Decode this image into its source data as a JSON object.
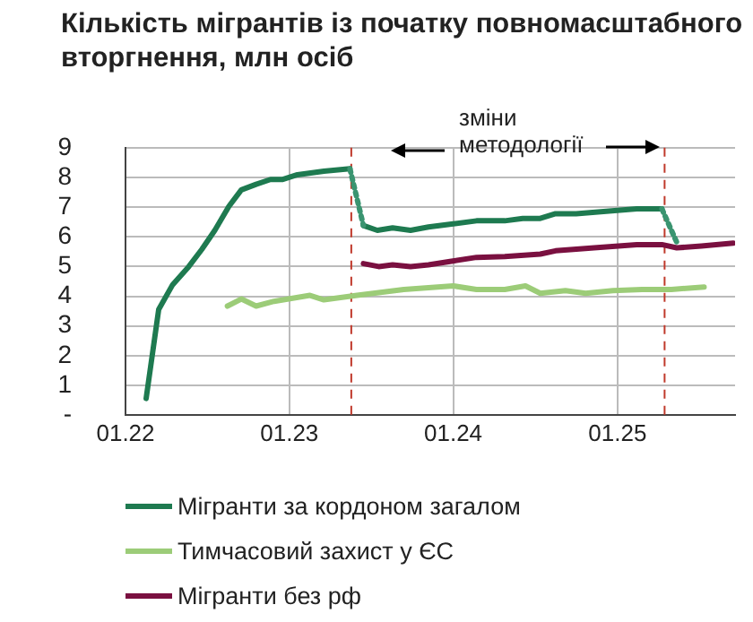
{
  "chart_data": {
    "type": "line",
    "title": "Кількість мігрантів із початку повномасштабного вторгнення, млн осіб",
    "xlim": [
      "2022-01-01",
      "2025-09-20"
    ],
    "xticks": [
      {
        "value": "2022-01-01",
        "label": "01.22"
      },
      {
        "value": "2023-01-01",
        "label": "01.23"
      },
      {
        "value": "2024-01-01",
        "label": "01.24"
      },
      {
        "value": "2025-01-01",
        "label": "01.25"
      }
    ],
    "ylim": [
      0,
      9
    ],
    "yticks": [
      {
        "value": 0,
        "label": "-"
      },
      1,
      2,
      3,
      4,
      5,
      6,
      7,
      8,
      9
    ],
    "grid": true,
    "legend": "bottom",
    "marker": "none",
    "series": [
      {
        "name": "Мігранти за кордоном загалом",
        "color": "#1e7a50",
        "x": [
          "2022-02-16",
          "2022-03-16",
          "2022-04-16",
          "2022-05-22",
          "2022-06-20",
          "2022-07-19",
          "2022-08-19",
          "2022-09-16",
          "2022-10-19",
          "2022-11-20",
          "2022-12-16",
          "2023-01-19",
          "2023-03-19",
          "2023-05-16",
          null,
          "2023-06-15",
          "2023-07-16",
          "2023-08-19",
          "2023-09-28",
          "2023-11-07",
          "2023-12-28",
          "2024-02-22",
          "2024-04-25",
          "2024-06-04",
          "2024-07-13",
          "2024-08-16",
          "2024-10-01",
          "2024-12-07",
          "2025-02-13",
          "2025-04-10"
        ],
        "values": [
          0.56,
          3.56,
          4.39,
          5.0,
          5.58,
          6.22,
          7.02,
          7.58,
          7.77,
          7.93,
          7.93,
          8.09,
          8.21,
          8.29,
          null,
          6.38,
          6.22,
          6.3,
          6.22,
          6.33,
          6.43,
          6.54,
          6.54,
          6.62,
          6.62,
          6.78,
          6.78,
          6.86,
          6.94,
          6.94
        ]
      },
      {
        "color": "#3a9470",
        "line_style": "dotted",
        "x": [
          "2023-05-16",
          "2023-06-15",
          null,
          "2025-04-10",
          "2025-05-13"
        ],
        "values": [
          8.29,
          6.38,
          null,
          6.94,
          5.82
        ]
      },
      {
        "name": "Тимчасовий захист у ЄС",
        "color": "#9ccc78",
        "x": [
          "2022-08-16",
          "2022-09-16",
          "2022-10-19",
          "2022-11-28",
          "2023-02-16",
          "2023-03-19",
          "2023-06-01",
          "2023-09-13",
          "2024-01-01",
          "2024-02-22",
          "2024-04-25",
          "2024-06-10",
          "2024-07-13",
          "2024-09-07",
          "2024-10-22",
          "2024-12-22",
          "2025-02-25",
          "2025-05-01",
          "2025-07-13"
        ],
        "values": [
          3.67,
          3.91,
          3.67,
          3.83,
          4.03,
          3.88,
          4.03,
          4.23,
          4.35,
          4.23,
          4.23,
          4.35,
          4.1,
          4.19,
          4.1,
          4.19,
          4.23,
          4.23,
          4.31
        ]
      },
      {
        "name": "Мігранти без рф",
        "color": "#7a1040",
        "x": [
          "2023-06-15",
          "2023-07-19",
          "2023-08-19",
          "2023-09-28",
          "2023-11-07",
          "2023-12-28",
          "2024-02-22",
          "2024-04-25",
          "2024-07-13",
          "2024-08-16",
          "2024-11-10",
          "2025-02-13",
          "2025-04-10",
          "2025-05-13",
          "2025-07-07",
          "2025-09-16"
        ],
        "values": [
          5.1,
          5.0,
          5.06,
          5.0,
          5.06,
          5.18,
          5.31,
          5.34,
          5.42,
          5.53,
          5.63,
          5.74,
          5.74,
          5.63,
          5.69,
          5.79
        ]
      }
    ],
    "ref_lines": [
      {
        "axis": "x",
        "value": "2023-05-19",
        "color": "#c0392b",
        "line_style": "dashed"
      },
      {
        "axis": "x",
        "value": "2025-04-16",
        "color": "#c0392b",
        "line_style": "dashed"
      }
    ],
    "annotations": [
      "зміни методології"
    ]
  }
}
